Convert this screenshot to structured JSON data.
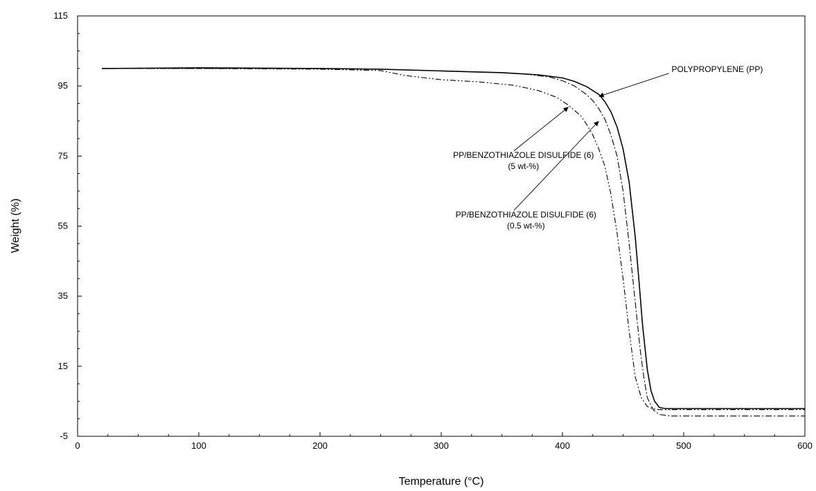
{
  "chart_data": {
    "type": "line",
    "title": "",
    "xlabel": "Temperature (°C)",
    "ylabel": "Weight (%)",
    "xlim": [
      0,
      600
    ],
    "ylim": [
      -5,
      115
    ],
    "x_ticks": [
      0,
      100,
      200,
      300,
      400,
      500,
      600
    ],
    "y_ticks": [
      -5,
      15,
      35,
      55,
      75,
      95,
      115
    ],
    "grid": false,
    "legend": "none",
    "series": [
      {
        "name": "",
        "style": "solid",
        "x": [
          20,
          100,
          200,
          250,
          300,
          350,
          380,
          400,
          410,
          420,
          430,
          435,
          440,
          445,
          450,
          455,
          460,
          463,
          466,
          470,
          473,
          476,
          480,
          485,
          500,
          600
        ],
        "y": [
          100,
          100.2,
          100,
          99.8,
          99.3,
          98.8,
          98.2,
          97.3,
          96.3,
          94.8,
          92.6,
          90.5,
          87.6,
          83.3,
          77,
          67.5,
          52,
          40,
          27,
          14,
          8,
          5,
          3.2,
          2.9,
          2.9,
          2.9
        ]
      },
      {
        "name": "",
        "style": "dash-dot",
        "x": [
          20,
          100,
          200,
          250,
          300,
          350,
          370,
          390,
          400,
          410,
          420,
          425,
          430,
          435,
          440,
          445,
          450,
          455,
          458,
          461,
          464,
          467,
          470,
          475,
          480,
          490,
          600
        ],
        "y": [
          100,
          100,
          100,
          99.8,
          99.3,
          98.8,
          98.4,
          97.5,
          96.5,
          95,
          92.5,
          90.8,
          88.5,
          85.5,
          81,
          75,
          65,
          50,
          40,
          30,
          20,
          12,
          6,
          2.5,
          1.2,
          0.8,
          0.8
        ]
      },
      {
        "name": "",
        "style": "dash-dot-dot",
        "x": [
          20,
          100,
          200,
          250,
          270,
          300,
          330,
          360,
          380,
          395,
          405,
          415,
          420,
          425,
          430,
          435,
          440,
          445,
          450,
          455,
          460,
          465,
          470,
          475,
          480,
          600
        ],
        "y": [
          100,
          100,
          99.8,
          99.4,
          98,
          96.8,
          96.2,
          95.2,
          93.7,
          91.8,
          89.5,
          86.5,
          84,
          81,
          77,
          72,
          64,
          53,
          40,
          25,
          12,
          6,
          3.5,
          2.8,
          2.6,
          2.6
        ]
      }
    ],
    "annotations": [
      {
        "lines": [
          "POLYPROPYLENE (PP)"
        ],
        "text_x": 490,
        "text_y": 99,
        "arrow_to": [
          430,
          92
        ]
      },
      {
        "lines": [
          "PP/BENZOTHIAZOLE DISULFIDE (6)",
          "(5 wt-%)"
        ],
        "text_x": 305,
        "text_y": 74.5,
        "arrow_from": [
          360,
          76.5
        ],
        "arrow_to": [
          405,
          89
        ]
      },
      {
        "lines": [
          "PP/BENZOTHIAZOLE DISULFIDE (6)",
          "(0.5 wt-%)"
        ],
        "text_x": 307,
        "text_y": 57.5,
        "arrow_from": [
          360,
          59.5
        ],
        "arrow_to": [
          430,
          85
        ]
      }
    ]
  }
}
